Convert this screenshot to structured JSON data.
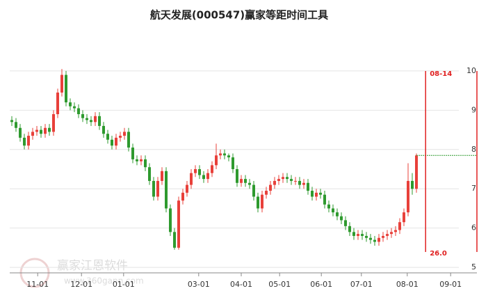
{
  "chart_data": {
    "type": "candlestick",
    "title": "航天发展(000547)赢家等距时间工具",
    "open": [
      8.75,
      8.7,
      8.55,
      8.3,
      8.1,
      8.35,
      8.45,
      8.5,
      8.4,
      8.55,
      8.45,
      8.9,
      9.45,
      9.9,
      9.2,
      9.1,
      9.05,
      8.9,
      8.8,
      8.75,
      8.7,
      8.85,
      8.6,
      8.4,
      8.25,
      8.1,
      8.3,
      8.35,
      8.45,
      8.05,
      7.75,
      7.7,
      7.75,
      7.55,
      7.2,
      6.8,
      7.2,
      7.45,
      6.5,
      5.9,
      5.5,
      6.7,
      6.9,
      7.1,
      7.4,
      7.5,
      7.35,
      7.25,
      7.4,
      7.6,
      7.85,
      7.9,
      7.85,
      7.8,
      7.5,
      7.15,
      7.25,
      7.15,
      7.1,
      6.8,
      6.5,
      6.85,
      6.95,
      7.1,
      7.2,
      7.25,
      7.3,
      7.25,
      7.2,
      7.2,
      7.1,
      7.15,
      6.95,
      6.8,
      6.9,
      6.85,
      6.6,
      6.5,
      6.4,
      6.3,
      6.2,
      6.05,
      5.9,
      5.8,
      5.85,
      5.8,
      5.75,
      5.7,
      5.65,
      5.75,
      5.8,
      5.85,
      5.9,
      5.95,
      6.15,
      6.4,
      7.2,
      7.0
    ],
    "high": [
      8.85,
      8.8,
      8.65,
      8.4,
      8.45,
      8.55,
      8.6,
      8.6,
      8.65,
      8.65,
      9.0,
      9.55,
      10.05,
      10.0,
      9.3,
      9.2,
      9.15,
      9.0,
      8.9,
      8.85,
      8.95,
      8.95,
      8.7,
      8.5,
      8.35,
      8.4,
      8.45,
      8.55,
      8.55,
      8.15,
      7.85,
      7.85,
      7.85,
      7.65,
      7.3,
      7.3,
      7.55,
      7.55,
      6.6,
      6.0,
      6.8,
      7.0,
      7.2,
      7.5,
      7.6,
      7.6,
      7.45,
      7.5,
      7.7,
      8.15,
      8.0,
      8.0,
      7.9,
      7.9,
      7.6,
      7.35,
      7.35,
      7.25,
      7.2,
      6.9,
      6.95,
      7.05,
      7.2,
      7.3,
      7.35,
      7.4,
      7.4,
      7.35,
      7.3,
      7.3,
      7.25,
      7.25,
      7.05,
      7.0,
      7.0,
      6.95,
      6.7,
      6.6,
      6.5,
      6.4,
      6.3,
      6.15,
      6.0,
      5.95,
      5.95,
      5.9,
      5.85,
      5.8,
      5.85,
      5.9,
      5.95,
      6.0,
      6.05,
      6.25,
      6.5,
      7.65,
      7.4,
      7.9
    ],
    "low": [
      8.6,
      8.45,
      8.2,
      8.0,
      8.0,
      8.25,
      8.35,
      8.3,
      8.3,
      8.35,
      8.35,
      8.8,
      9.35,
      9.1,
      9.0,
      8.95,
      8.8,
      8.7,
      8.65,
      8.6,
      8.6,
      8.5,
      8.3,
      8.15,
      8.0,
      8.0,
      8.2,
      8.25,
      7.95,
      7.65,
      7.6,
      7.6,
      7.45,
      7.1,
      6.7,
      6.7,
      7.1,
      6.4,
      5.8,
      5.45,
      5.45,
      6.6,
      6.8,
      7.0,
      7.3,
      7.25,
      7.15,
      7.15,
      7.3,
      7.5,
      7.75,
      7.75,
      7.7,
      7.4,
      7.05,
      7.05,
      7.05,
      7.0,
      6.7,
      6.4,
      6.4,
      6.75,
      6.85,
      7.0,
      7.1,
      7.15,
      7.15,
      7.1,
      7.1,
      7.0,
      7.0,
      6.85,
      6.7,
      6.7,
      6.75,
      6.5,
      6.4,
      6.3,
      6.2,
      6.1,
      5.95,
      5.8,
      5.7,
      5.7,
      5.7,
      5.65,
      5.6,
      5.55,
      5.55,
      5.65,
      5.7,
      5.75,
      5.8,
      5.85,
      6.05,
      6.3,
      6.85,
      6.9
    ],
    "close": [
      8.7,
      8.55,
      8.3,
      8.1,
      8.35,
      8.45,
      8.5,
      8.4,
      8.55,
      8.45,
      8.9,
      9.45,
      9.9,
      9.2,
      9.1,
      9.05,
      8.9,
      8.8,
      8.75,
      8.7,
      8.85,
      8.6,
      8.4,
      8.25,
      8.1,
      8.3,
      8.35,
      8.45,
      8.05,
      7.75,
      7.7,
      7.75,
      7.55,
      7.2,
      6.8,
      7.2,
      7.45,
      6.5,
      5.9,
      5.5,
      6.7,
      6.9,
      7.1,
      7.4,
      7.5,
      7.35,
      7.25,
      7.4,
      7.6,
      7.85,
      7.9,
      7.85,
      7.8,
      7.5,
      7.15,
      7.25,
      7.15,
      7.1,
      6.8,
      6.5,
      6.85,
      6.95,
      7.1,
      7.2,
      7.25,
      7.3,
      7.25,
      7.2,
      7.2,
      7.1,
      7.15,
      6.95,
      6.8,
      6.9,
      6.85,
      6.6,
      6.5,
      6.4,
      6.3,
      6.2,
      6.05,
      5.9,
      5.8,
      5.85,
      5.8,
      5.75,
      5.7,
      5.65,
      5.75,
      5.8,
      5.85,
      5.9,
      5.95,
      6.15,
      6.4,
      7.2,
      7.0,
      7.85
    ],
    "up_color": "#e8403a",
    "down_color": "#2e9a2e",
    "xlim": [
      -0.5,
      111.5
    ],
    "xticks": [
      {
        "value": 6.2,
        "label": "11-01"
      },
      {
        "value": 16.7,
        "label": "12-01"
      },
      {
        "value": 26.8,
        "label": "01-01"
      },
      {
        "value": 44.8,
        "label": "03-01"
      },
      {
        "value": 55,
        "label": "04-01"
      },
      {
        "value": 64.2,
        "label": "05-01"
      },
      {
        "value": 74.2,
        "label": "06-01"
      },
      {
        "value": 83.8,
        "label": "07-01"
      },
      {
        "value": 94.8,
        "label": "08-01"
      },
      {
        "value": 105.2,
        "label": "09-01"
      }
    ],
    "ylim": [
      4.86,
      10.3
    ],
    "yticks": [
      5,
      6,
      7,
      8,
      9,
      10
    ],
    "grid": true,
    "marker": {
      "x": 99.2,
      "label": "08-14",
      "text": "26.0",
      "color": "#e02020"
    },
    "watermark": [
      "赢家江恩软件",
      "www.360gann.com"
    ]
  }
}
